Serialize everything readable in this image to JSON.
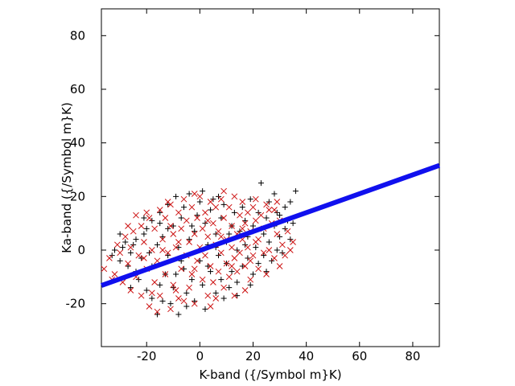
{
  "chart_data": {
    "type": "scatter",
    "xlabel": "K-band ({/Symbol m}K)",
    "ylabel": "Ka-band ({/Symbol m}K)",
    "xlim": [
      -37,
      90
    ],
    "ylim": [
      -36,
      90
    ],
    "x_ticks": [
      "-20",
      "0",
      "20",
      "40",
      "60",
      "80"
    ],
    "y_ticks": [
      "-20",
      "0",
      "20",
      "40",
      "60",
      "80"
    ],
    "x_tick_values": [
      -20,
      0,
      20,
      40,
      60,
      80
    ],
    "y_tick_values": [
      -20,
      0,
      20,
      40,
      60,
      80
    ],
    "grid": false,
    "legend": "none",
    "series": [
      {
        "marker": "plus",
        "color": "#000000",
        "points": [
          [
            -33,
            -2
          ],
          [
            -32,
            0
          ],
          [
            -30,
            -4
          ],
          [
            -29,
            1
          ],
          [
            -28,
            3
          ],
          [
            -27,
            -6
          ],
          [
            -26,
            -1
          ],
          [
            -25,
            2
          ],
          [
            -24,
            -8
          ],
          [
            -24,
            4
          ],
          [
            -23,
            -11
          ],
          [
            -22,
            -3
          ],
          [
            -21,
            6
          ],
          [
            -20,
            -15
          ],
          [
            -20,
            8
          ],
          [
            -19,
            -1
          ],
          [
            -18,
            -18
          ],
          [
            -18,
            11
          ],
          [
            -17,
            -6
          ],
          [
            -16,
            2
          ],
          [
            -16,
            -24
          ],
          [
            -15,
            -13
          ],
          [
            -15,
            14
          ],
          [
            -14,
            5
          ],
          [
            -13,
            -9
          ],
          [
            -12,
            17
          ],
          [
            -12,
            -2
          ],
          [
            -11,
            -20
          ],
          [
            -10,
            9
          ],
          [
            -10,
            -14
          ],
          [
            -9,
            20
          ],
          [
            -8,
            1
          ],
          [
            -8,
            -24
          ],
          [
            -7,
            12
          ],
          [
            -6,
            -7
          ],
          [
            -6,
            16
          ],
          [
            -5,
            -16
          ],
          [
            -4,
            4
          ],
          [
            -4,
            21
          ],
          [
            -3,
            -11
          ],
          [
            -2,
            7
          ],
          [
            -2,
            -19
          ],
          [
            -1,
            13
          ],
          [
            0,
            -4
          ],
          [
            0,
            18
          ],
          [
            1,
            -13
          ],
          [
            2,
            10
          ],
          [
            2,
            -22
          ],
          [
            3,
            2
          ],
          [
            4,
            15
          ],
          [
            4,
            -8
          ],
          [
            5,
            19
          ],
          [
            6,
            -16
          ],
          [
            6,
            6
          ],
          [
            7,
            -2
          ],
          [
            8,
            12
          ],
          [
            8,
            -11
          ],
          [
            9,
            17
          ],
          [
            10,
            -5
          ],
          [
            10,
            3
          ],
          [
            11,
            -14
          ],
          [
            12,
            9
          ],
          [
            12,
            -8
          ],
          [
            13,
            14
          ],
          [
            14,
            0
          ],
          [
            14,
            -12
          ],
          [
            15,
            7
          ],
          [
            16,
            16
          ],
          [
            16,
            -6
          ],
          [
            17,
            11
          ],
          [
            18,
            -3
          ],
          [
            18,
            5
          ],
          [
            19,
            19
          ],
          [
            20,
            -9
          ],
          [
            20,
            9
          ],
          [
            21,
            1
          ],
          [
            22,
            14
          ],
          [
            22,
            -5
          ],
          [
            23,
            25
          ],
          [
            24,
            6
          ],
          [
            24,
            -2
          ],
          [
            25,
            12
          ],
          [
            26,
            3
          ],
          [
            26,
            18
          ],
          [
            27,
            -4
          ],
          [
            28,
            9
          ],
          [
            28,
            21
          ],
          [
            29,
            0
          ],
          [
            30,
            13
          ],
          [
            30,
            5
          ],
          [
            31,
            -1
          ],
          [
            32,
            8
          ],
          [
            32,
            16
          ],
          [
            33,
            11
          ],
          [
            34,
            4
          ],
          [
            34,
            18
          ],
          [
            35,
            10
          ],
          [
            36,
            22
          ],
          [
            -18,
            -6
          ],
          [
            -7,
            -4
          ],
          [
            3,
            -6
          ],
          [
            -12,
            8
          ],
          [
            9,
            -18
          ],
          [
            -26,
            -14
          ],
          [
            14,
            -17
          ],
          [
            -21,
            12
          ],
          [
            1,
            22
          ],
          [
            19,
            -13
          ],
          [
            -14,
            -19
          ],
          [
            6,
            1
          ],
          [
            -3,
            9
          ],
          [
            11,
            6
          ],
          [
            -9,
            -9
          ],
          [
            25,
            -8
          ],
          [
            -30,
            6
          ],
          [
            17,
            2
          ],
          [
            -5,
            -21
          ],
          [
            29,
            14
          ],
          [
            -15,
            10
          ],
          [
            7,
            20
          ]
        ]
      },
      {
        "marker": "cross",
        "color": "#cc1111",
        "points": [
          [
            -36,
            -7
          ],
          [
            -34,
            -3
          ],
          [
            -32,
            -9
          ],
          [
            -31,
            2
          ],
          [
            -30,
            -1
          ],
          [
            -29,
            -12
          ],
          [
            -28,
            5
          ],
          [
            -27,
            -5
          ],
          [
            -26,
            -15
          ],
          [
            -26,
            1
          ],
          [
            -25,
            7
          ],
          [
            -24,
            -10
          ],
          [
            -23,
            -2
          ],
          [
            -22,
            9
          ],
          [
            -22,
            -17
          ],
          [
            -21,
            3
          ],
          [
            -20,
            -7
          ],
          [
            -19,
            12
          ],
          [
            -19,
            -21
          ],
          [
            -18,
            0
          ],
          [
            -17,
            -12
          ],
          [
            -17,
            8
          ],
          [
            -16,
            -4
          ],
          [
            -15,
            15
          ],
          [
            -15,
            -17
          ],
          [
            -14,
            4
          ],
          [
            -13,
            -9
          ],
          [
            -13,
            12
          ],
          [
            -12,
            -1
          ],
          [
            -11,
            -22
          ],
          [
            -11,
            17
          ],
          [
            -10,
            6
          ],
          [
            -10,
            -13
          ],
          [
            -9,
            1
          ],
          [
            -8,
            14
          ],
          [
            -8,
            -18
          ],
          [
            -7,
            8
          ],
          [
            -7,
            -7
          ],
          [
            -6,
            19
          ],
          [
            -5,
            -2
          ],
          [
            -5,
            11
          ],
          [
            -4,
            -14
          ],
          [
            -4,
            3
          ],
          [
            -3,
            16
          ],
          [
            -3,
            -9
          ],
          [
            -2,
            6
          ],
          [
            -2,
            -20
          ],
          [
            -1,
            12
          ],
          [
            -1,
            -4
          ],
          [
            0,
            1
          ],
          [
            0,
            20
          ],
          [
            1,
            -11
          ],
          [
            1,
            8
          ],
          [
            2,
            -2
          ],
          [
            2,
            14
          ],
          [
            3,
            -17
          ],
          [
            3,
            5
          ],
          [
            4,
            18
          ],
          [
            4,
            -6
          ],
          [
            5,
            10
          ],
          [
            5,
            -12
          ],
          [
            6,
            2
          ],
          [
            6,
            16
          ],
          [
            7,
            -8
          ],
          [
            7,
            7
          ],
          [
            8,
            -1
          ],
          [
            8,
            19
          ],
          [
            9,
            -14
          ],
          [
            9,
            12
          ],
          [
            10,
            4
          ],
          [
            10,
            -5
          ],
          [
            11,
            16
          ],
          [
            11,
            -10
          ],
          [
            12,
            1
          ],
          [
            12,
            9
          ],
          [
            13,
            -3
          ],
          [
            13,
            20
          ],
          [
            14,
            6
          ],
          [
            14,
            -8
          ],
          [
            15,
            13
          ],
          [
            15,
            -1
          ],
          [
            16,
            4
          ],
          [
            16,
            18
          ],
          [
            17,
            -6
          ],
          [
            17,
            10
          ],
          [
            18,
            1
          ],
          [
            18,
            14
          ],
          [
            19,
            -4
          ],
          [
            19,
            7
          ],
          [
            20,
            16
          ],
          [
            20,
            -2
          ],
          [
            21,
            11
          ],
          [
            22,
            -7
          ],
          [
            22,
            4
          ],
          [
            23,
            13
          ],
          [
            24,
            -1
          ],
          [
            24,
            8
          ],
          [
            25,
            17
          ],
          [
            26,
            0
          ],
          [
            27,
            10
          ],
          [
            28,
            -3
          ],
          [
            28,
            15
          ],
          [
            29,
            6
          ],
          [
            30,
            -6
          ],
          [
            30,
            11
          ],
          [
            31,
            2
          ],
          [
            32,
            -2
          ],
          [
            33,
            7
          ],
          [
            34,
            0
          ],
          [
            35,
            3
          ],
          [
            -33,
            -11
          ],
          [
            -27,
            9
          ],
          [
            -20,
            14
          ],
          [
            -16,
            -23
          ],
          [
            -12,
            18
          ],
          [
            -6,
            -19
          ],
          [
            -2,
            21
          ],
          [
            4,
            -21
          ],
          [
            9,
            22
          ],
          [
            13,
            -17
          ],
          [
            17,
            -15
          ],
          [
            21,
            19
          ],
          [
            25,
            -9
          ],
          [
            29,
            18
          ],
          [
            -24,
            13
          ],
          [
            -18,
            -16
          ],
          [
            -9,
            -15
          ],
          [
            6,
            -18
          ],
          [
            19,
            -11
          ],
          [
            26,
            15
          ],
          [
            -14,
            0
          ],
          [
            -8,
            3
          ],
          [
            -2,
            -7
          ],
          [
            3,
            11
          ],
          [
            8,
            5
          ],
          [
            12,
            -6
          ],
          [
            16,
            8
          ],
          [
            21,
            3
          ],
          [
            -21,
            -3
          ],
          [
            -11,
            9
          ]
        ]
      },
      {
        "marker": "line",
        "color": "#1010ee",
        "points": [
          [
            -37,
            -13.2
          ],
          [
            90,
            31.6
          ]
        ]
      }
    ]
  }
}
